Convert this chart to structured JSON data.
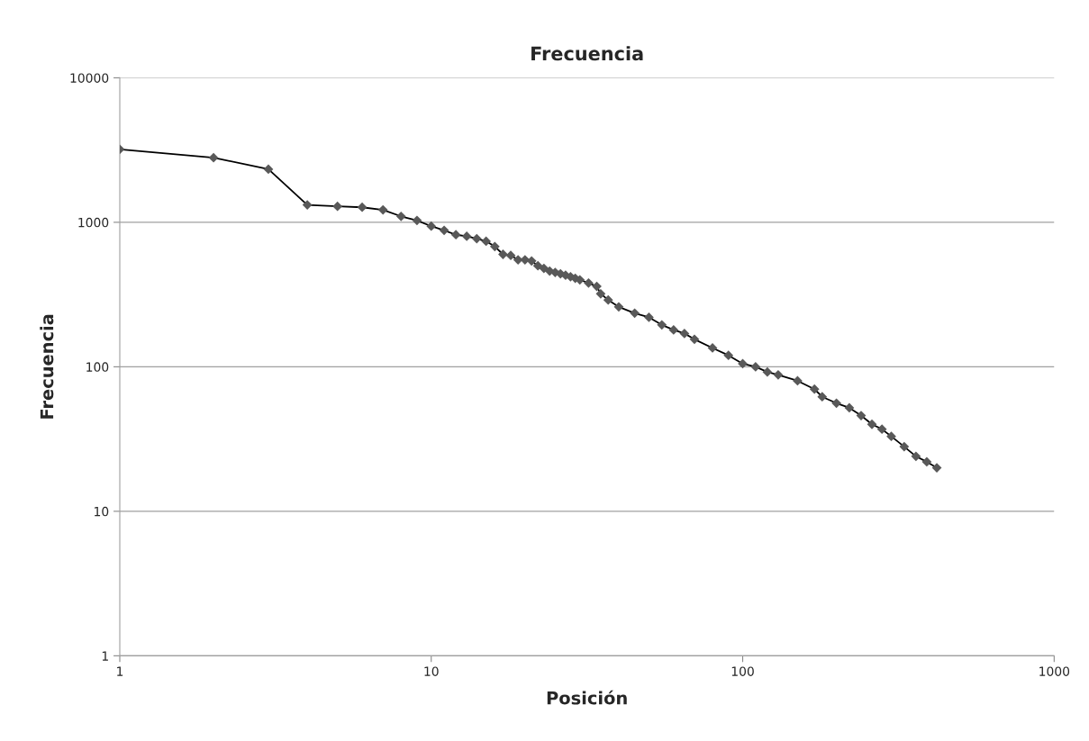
{
  "chart_data": {
    "type": "line",
    "title": "Frecuencia",
    "xlabel": "Posición",
    "ylabel": "Frecuencia",
    "log": "xy",
    "xlim": [
      1,
      1000
    ],
    "ylim": [
      1,
      10000
    ],
    "xticks": [
      1,
      10,
      100,
      1000
    ],
    "yticks": [
      1,
      10,
      100,
      1000,
      10000
    ],
    "grid": "y",
    "marker": "diamond",
    "line_style": "solid",
    "series": [
      {
        "color": "#595959",
        "x": [
          1,
          2,
          3,
          4,
          5,
          6,
          7,
          8,
          9,
          10,
          11,
          12,
          13,
          14,
          15,
          16,
          17,
          18,
          19,
          20,
          21,
          22,
          23,
          24,
          25,
          26,
          27,
          28,
          29,
          30,
          32,
          34,
          35,
          37,
          40,
          45,
          50,
          55,
          60,
          65,
          70,
          80,
          90,
          100,
          110,
          120,
          130,
          150,
          170,
          180,
          200,
          220,
          240,
          260,
          280,
          300,
          330,
          360,
          390,
          420
        ],
        "values": [
          3200,
          2800,
          2330,
          1320,
          1290,
          1270,
          1220,
          1100,
          1030,
          940,
          880,
          820,
          800,
          770,
          740,
          680,
          600,
          590,
          550,
          550,
          540,
          500,
          480,
          460,
          450,
          440,
          430,
          420,
          410,
          400,
          380,
          360,
          320,
          290,
          260,
          235,
          220,
          195,
          180,
          170,
          155,
          135,
          120,
          105,
          100,
          92,
          88,
          80,
          70,
          62,
          56,
          52,
          46,
          40,
          37,
          33,
          28,
          24,
          22,
          20
        ]
      }
    ]
  }
}
